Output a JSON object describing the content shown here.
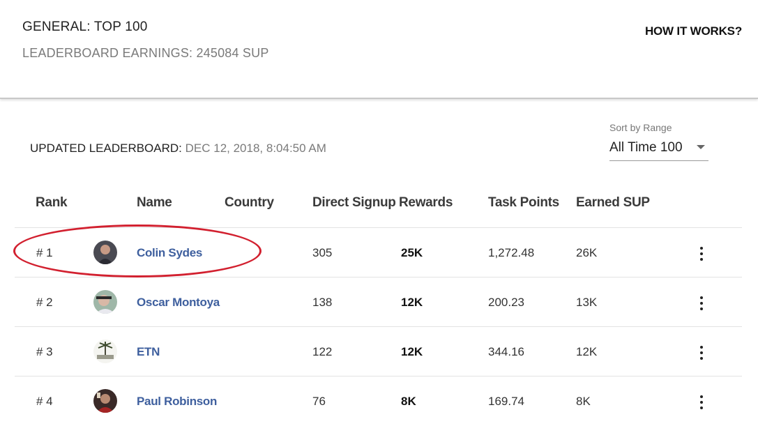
{
  "header": {
    "title": "GENERAL: TOP 100",
    "earnings": "LEADERBOARD EARNINGS: 245084 SUP",
    "how_it_works": "HOW IT WORKS?"
  },
  "updated": {
    "label": "UPDATED LEADERBOARD: ",
    "timestamp": "DEC 12, 2018, 8:04:50 AM"
  },
  "sort": {
    "label": "Sort by Range",
    "selected": "All Time 100"
  },
  "columns": {
    "rank": "Rank",
    "name": "Name",
    "country": "Country",
    "direct_signup": "Direct Signup",
    "rewards": "Rewards",
    "task_points": "Task Points",
    "earned_sup": "Earned SUP"
  },
  "rows": [
    {
      "rank": "# 1",
      "name": "Colin Sydes",
      "signups": "305",
      "rewards": "25K",
      "points": "1,272.48",
      "earned": "26K"
    },
    {
      "rank": "# 2",
      "name": "Oscar Montoya",
      "signups": "138",
      "rewards": "12K",
      "points": "200.23",
      "earned": "13K"
    },
    {
      "rank": "# 3",
      "name": "ETN",
      "signups": "122",
      "rewards": "12K",
      "points": "344.16",
      "earned": "12K"
    },
    {
      "rank": "# 4",
      "name": "Paul Robinson",
      "signups": "76",
      "rewards": "8K",
      "points": "169.74",
      "earned": "8K"
    }
  ],
  "colors": {
    "name_link": "#3e5f9e",
    "highlight": "#d2202f"
  }
}
